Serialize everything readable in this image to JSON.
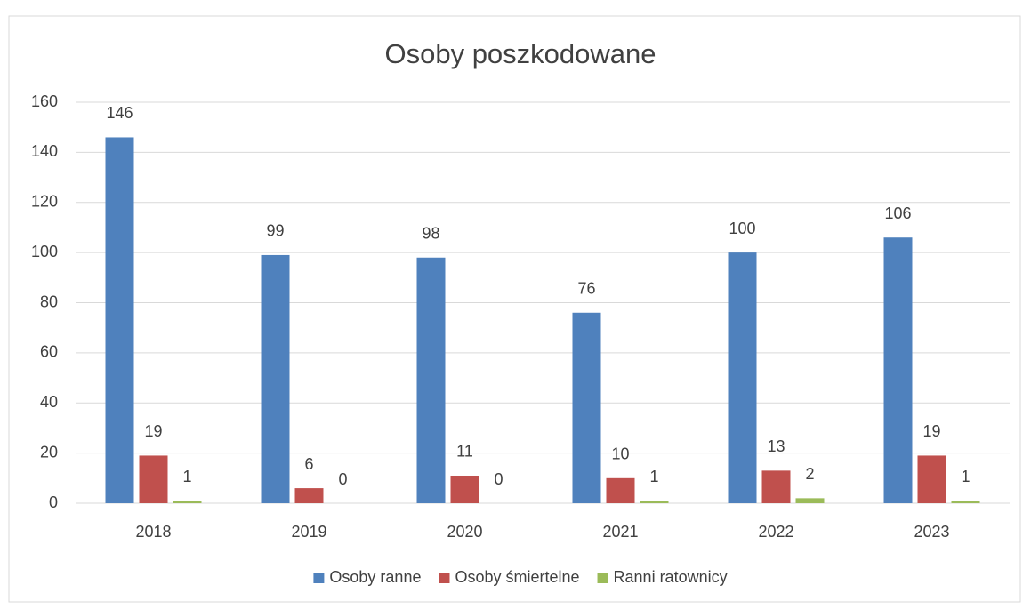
{
  "chart_data": {
    "type": "bar",
    "title": "Osoby poszkodowane",
    "categories": [
      "2018",
      "2019",
      "2020",
      "2021",
      "2022",
      "2023"
    ],
    "series": [
      {
        "name": "Osoby ranne",
        "color": "#4f81bd",
        "values": [
          146,
          99,
          98,
          76,
          100,
          106
        ]
      },
      {
        "name": "Osoby śmiertelne",
        "color": "#c0504d",
        "values": [
          19,
          6,
          11,
          10,
          13,
          19
        ]
      },
      {
        "name": "Ranni ratownicy",
        "color": "#9bbb59",
        "values": [
          1,
          0,
          0,
          1,
          2,
          1
        ]
      }
    ],
    "ylim": [
      0,
      160
    ],
    "yticks": [
      0,
      20,
      40,
      60,
      80,
      100,
      120,
      140,
      160
    ],
    "grid": true,
    "legend": "bottom"
  }
}
